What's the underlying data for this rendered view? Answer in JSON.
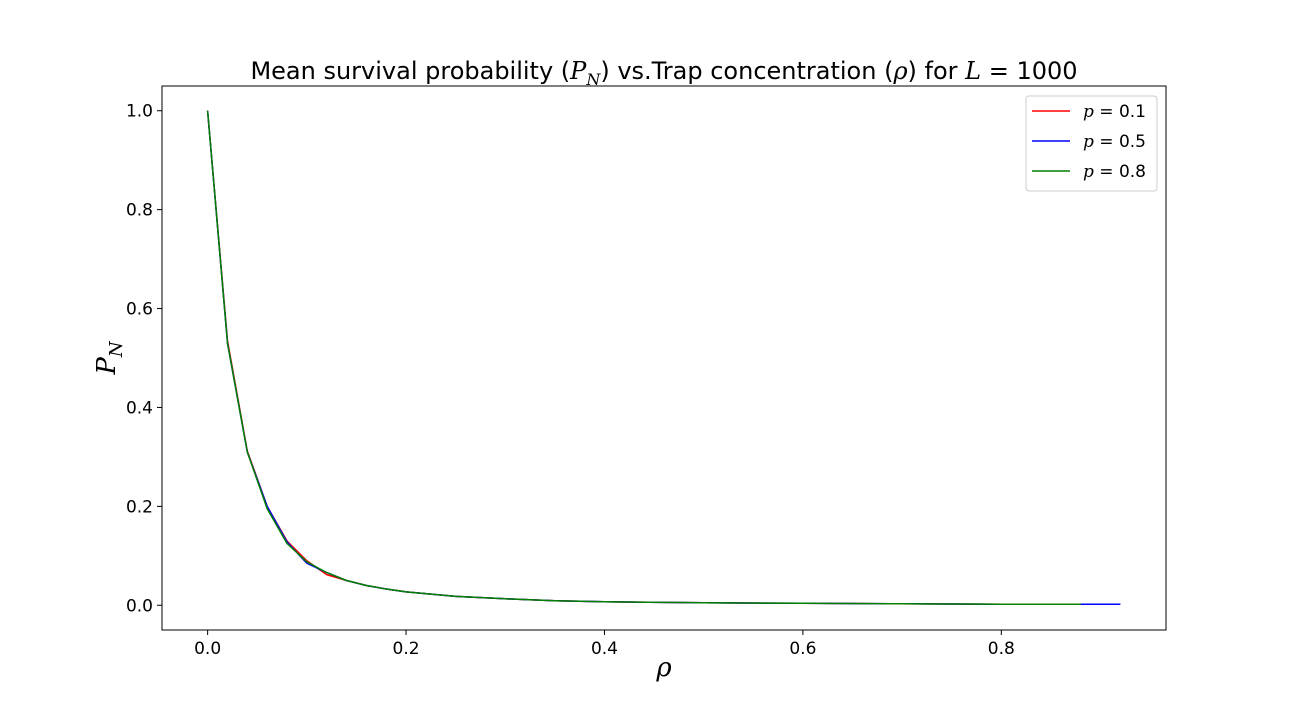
{
  "chart_data": {
    "type": "line",
    "title": {
      "prefix": "Mean survival probability (",
      "p_sym": "P",
      "p_sub": "N",
      "middle": ") vs.Trap concentration (",
      "rho_sym": "ρ",
      "suffix": ") for ",
      "L_sym": "L",
      "L_eq": " = 1000"
    },
    "xlabel": "ρ",
    "ylabel": {
      "sym": "P",
      "sub": "N"
    },
    "xlim": [
      -0.046,
      0.966
    ],
    "ylim": [
      -0.05,
      1.05
    ],
    "xticks": [
      "0.0",
      "0.2",
      "0.4",
      "0.6",
      "0.8"
    ],
    "xtick_values": [
      0.0,
      0.2,
      0.4,
      0.6,
      0.8
    ],
    "yticks": [
      "0.0",
      "0.2",
      "0.4",
      "0.6",
      "0.8",
      "1.0"
    ],
    "ytick_values": [
      0.0,
      0.2,
      0.4,
      0.6,
      0.8,
      1.0
    ],
    "grid": false,
    "legend_position": "top-right",
    "series": [
      {
        "name": "p = 0.1",
        "name_sym": "p",
        "name_rest": " = 0.1",
        "color": "#ff0000",
        "x": [
          0.0,
          0.02,
          0.04,
          0.06,
          0.08,
          0.1,
          0.12,
          0.14,
          0.16,
          0.18,
          0.2,
          0.25,
          0.3,
          0.35,
          0.4,
          0.5,
          0.6,
          0.7,
          0.8,
          0.88
        ],
        "y": [
          1.0,
          0.535,
          0.312,
          0.2,
          0.13,
          0.09,
          0.062,
          0.05,
          0.04,
          0.033,
          0.027,
          0.018,
          0.013,
          0.009,
          0.007,
          0.005,
          0.004,
          0.003,
          0.002,
          0.002
        ]
      },
      {
        "name": "p = 0.5",
        "name_sym": "p",
        "name_rest": " = 0.5",
        "color": "#0000ff",
        "x": [
          0.0,
          0.02,
          0.04,
          0.06,
          0.08,
          0.1,
          0.12,
          0.14,
          0.16,
          0.18,
          0.2,
          0.25,
          0.3,
          0.35,
          0.4,
          0.5,
          0.6,
          0.7,
          0.8,
          0.92
        ],
        "y": [
          1.0,
          0.53,
          0.31,
          0.2,
          0.128,
          0.085,
          0.066,
          0.05,
          0.04,
          0.033,
          0.027,
          0.018,
          0.013,
          0.009,
          0.007,
          0.005,
          0.004,
          0.003,
          0.002,
          0.002
        ]
      },
      {
        "name": "p = 0.8",
        "name_sym": "p",
        "name_rest": " = 0.8",
        "color": "#008000",
        "x": [
          0.0,
          0.02,
          0.04,
          0.06,
          0.08,
          0.1,
          0.12,
          0.14,
          0.16,
          0.18,
          0.2,
          0.25,
          0.3,
          0.35,
          0.4,
          0.5,
          0.6,
          0.7,
          0.8,
          0.88
        ],
        "y": [
          1.0,
          0.53,
          0.31,
          0.195,
          0.125,
          0.088,
          0.066,
          0.05,
          0.04,
          0.033,
          0.027,
          0.018,
          0.013,
          0.009,
          0.007,
          0.005,
          0.004,
          0.003,
          0.002,
          0.002
        ]
      }
    ]
  }
}
